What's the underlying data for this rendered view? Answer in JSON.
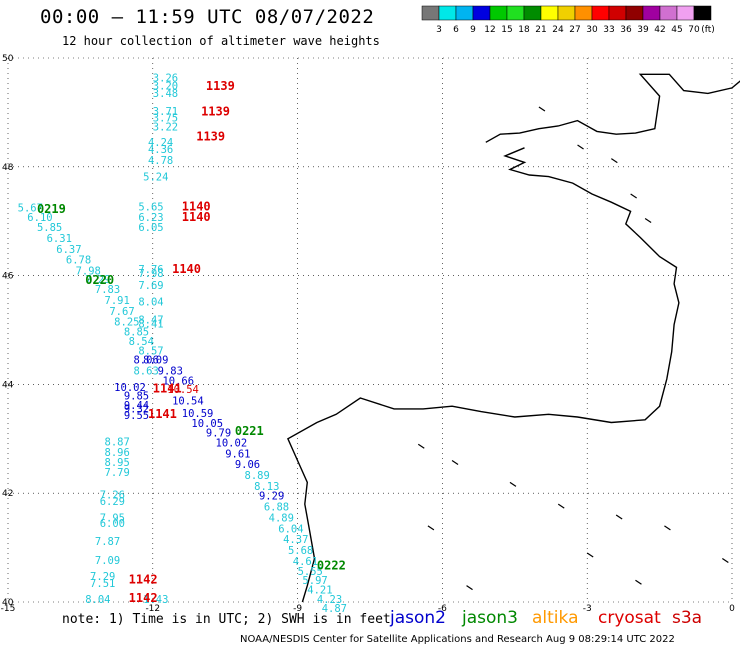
{
  "title": "00:00 – 11:59 UTC 08/07/2022",
  "subtitle": "12 hour collection of altimeter wave heights",
  "colorbar": {
    "labels": [
      "3",
      "6",
      "9",
      "12",
      "15",
      "18",
      "21",
      "24",
      "27",
      "30",
      "33",
      "36",
      "39",
      "42",
      "45",
      "70"
    ],
    "unit": "(ft)",
    "colors": [
      "#777777",
      "#00e8e8",
      "#00b4f0",
      "#0000e0",
      "#00c800",
      "#20e020",
      "#008c00",
      "#ffff00",
      "#f0d000",
      "#ff9000",
      "#ff0000",
      "#d00000",
      "#900000",
      "#a000a0",
      "#d070d0",
      "#f0a0f0",
      "#000000"
    ]
  },
  "axes": {
    "x_ticks": [
      "-15",
      "-12",
      "-9",
      "-6",
      "-3",
      "0"
    ],
    "y_ticks": [
      "50",
      "48",
      "46",
      "44",
      "42",
      "40"
    ]
  },
  "map": {
    "lon_range": [
      -15,
      0
    ],
    "lat_range": [
      40,
      50
    ],
    "colors": {
      "jason2": "#0000cc",
      "jason3": "#008800",
      "altika": "#ff9900",
      "cryosat": "#dd0000",
      "s3a": "#cc0000",
      "swh_light": "#00b0d0"
    },
    "annotations": [
      {
        "lon": -12.0,
        "lat": 49.57,
        "text": "3.26",
        "color": "#22c8d8"
      },
      {
        "lon": -12.0,
        "lat": 49.42,
        "text": "3.20",
        "color": "#22c8d8"
      },
      {
        "lon": -12.0,
        "lat": 49.28,
        "text": "3.48",
        "color": "#22c8d8"
      },
      {
        "lon": -12.0,
        "lat": 48.95,
        "text": "3.71",
        "color": "#22c8d8"
      },
      {
        "lon": -12.0,
        "lat": 48.83,
        "text": "3.75",
        "color": "#22c8d8"
      },
      {
        "lon": -12.0,
        "lat": 48.67,
        "text": "3.22",
        "color": "#22c8d8"
      },
      {
        "lon": -12.1,
        "lat": 48.38,
        "text": "4.24",
        "color": "#22c8d8"
      },
      {
        "lon": -12.1,
        "lat": 48.25,
        "text": "4.36",
        "color": "#22c8d8"
      },
      {
        "lon": -12.1,
        "lat": 48.05,
        "text": "4.78",
        "color": "#22c8d8"
      },
      {
        "lon": -12.2,
        "lat": 47.75,
        "text": "5.24",
        "color": "#22c8d8"
      },
      {
        "lon": -12.3,
        "lat": 47.2,
        "text": "5.65",
        "color": "#22c8d8"
      },
      {
        "lon": -12.3,
        "lat": 47.0,
        "text": "6.23",
        "color": "#22c8d8"
      },
      {
        "lon": -12.3,
        "lat": 46.82,
        "text": "6.05",
        "color": "#22c8d8"
      },
      {
        "lon": -12.3,
        "lat": 46.05,
        "text": "7.76",
        "color": "#22c8d8"
      },
      {
        "lon": -12.3,
        "lat": 45.97,
        "text": "7.98",
        "color": "#22c8d8"
      },
      {
        "lon": -12.3,
        "lat": 45.75,
        "text": "7.69",
        "color": "#22c8d8"
      },
      {
        "lon": -12.3,
        "lat": 45.45,
        "text": "8.04",
        "color": "#22c8d8"
      },
      {
        "lon": -12.3,
        "lat": 45.12,
        "text": "8.47",
        "color": "#22c8d8"
      },
      {
        "lon": -12.3,
        "lat": 45.05,
        "text": "8.41",
        "color": "#22c8d8"
      },
      {
        "lon": -14.8,
        "lat": 47.18,
        "text": "5.67",
        "color": "#22c8d8"
      },
      {
        "lon": -14.6,
        "lat": 47.0,
        "text": "6.10",
        "color": "#22c8d8"
      },
      {
        "lon": -14.4,
        "lat": 46.82,
        "text": "5.85",
        "color": "#22c8d8"
      },
      {
        "lon": -14.2,
        "lat": 46.62,
        "text": "6.31",
        "color": "#22c8d8"
      },
      {
        "lon": -14.0,
        "lat": 46.42,
        "text": "6.37",
        "color": "#22c8d8"
      },
      {
        "lon": -13.8,
        "lat": 46.22,
        "text": "6.78",
        "color": "#22c8d8"
      },
      {
        "lon": -13.6,
        "lat": 46.02,
        "text": "7.98",
        "color": "#22c8d8"
      },
      {
        "lon": -13.4,
        "lat": 45.86,
        "text": "7.29",
        "color": "#22c8d8"
      },
      {
        "lon": -13.2,
        "lat": 45.68,
        "text": "7.83",
        "color": "#22c8d8"
      },
      {
        "lon": -13.0,
        "lat": 45.48,
        "text": "7.91",
        "color": "#22c8d8"
      },
      {
        "lon": -12.9,
        "lat": 45.28,
        "text": "7.67",
        "color": "#22c8d8"
      },
      {
        "lon": -12.8,
        "lat": 45.08,
        "text": "8.25",
        "color": "#22c8d8"
      },
      {
        "lon": -12.6,
        "lat": 44.9,
        "text": "8.85",
        "color": "#22c8d8"
      },
      {
        "lon": -12.5,
        "lat": 44.72,
        "text": "8.54",
        "color": "#22c8d8"
      },
      {
        "lon": -12.3,
        "lat": 44.55,
        "text": "8.57",
        "color": "#22c8d8"
      },
      {
        "lon": -12.4,
        "lat": 44.38,
        "text": "8.06",
        "color": "#0000cc"
      },
      {
        "lon": -12.2,
        "lat": 44.38,
        "text": "8.09",
        "color": "#0000cc"
      },
      {
        "lon": -12.4,
        "lat": 44.18,
        "text": "8.63",
        "color": "#22c8d8"
      },
      {
        "lon": -11.9,
        "lat": 44.18,
        "text": "9.83",
        "color": "#0000cc"
      },
      {
        "lon": -11.8,
        "lat": 44.0,
        "text": "10.66",
        "color": "#0000cc"
      },
      {
        "lon": -12.8,
        "lat": 43.88,
        "text": "10.02",
        "color": "#0000cc"
      },
      {
        "lon": -11.7,
        "lat": 43.84,
        "text": "10.54",
        "color": "#dd0000"
      },
      {
        "lon": -12.6,
        "lat": 43.72,
        "text": "9.85",
        "color": "#0000cc"
      },
      {
        "lon": -12.6,
        "lat": 43.55,
        "text": "9.44",
        "color": "#0000cc"
      },
      {
        "lon": -12.6,
        "lat": 43.48,
        "text": "9.32",
        "color": "#0000cc"
      },
      {
        "lon": -11.6,
        "lat": 43.63,
        "text": "10.54",
        "color": "#0000cc"
      },
      {
        "lon": -12.6,
        "lat": 43.36,
        "text": "9.55",
        "color": "#0000cc"
      },
      {
        "lon": -11.4,
        "lat": 43.4,
        "text": "10.59",
        "color": "#0000cc"
      },
      {
        "lon": -11.2,
        "lat": 43.22,
        "text": "10.05",
        "color": "#0000cc"
      },
      {
        "lon": -10.9,
        "lat": 43.04,
        "text": "9.79",
        "color": "#0000cc"
      },
      {
        "lon": -10.7,
        "lat": 42.86,
        "text": "10.02",
        "color": "#0000cc"
      },
      {
        "lon": -10.5,
        "lat": 42.66,
        "text": "9.61",
        "color": "#0000cc"
      },
      {
        "lon": -10.3,
        "lat": 42.46,
        "text": "9.06",
        "color": "#0000cc"
      },
      {
        "lon": -10.1,
        "lat": 42.26,
        "text": "8.89",
        "color": "#22c8d8"
      },
      {
        "lon": -9.9,
        "lat": 42.06,
        "text": "8.13",
        "color": "#22c8d8"
      },
      {
        "lon": -9.8,
        "lat": 41.88,
        "text": "9.29",
        "color": "#0000cc"
      },
      {
        "lon": -9.7,
        "lat": 41.68,
        "text": "6.88",
        "color": "#22c8d8"
      },
      {
        "lon": -9.6,
        "lat": 41.48,
        "text": "4.89",
        "color": "#22c8d8"
      },
      {
        "lon": -9.4,
        "lat": 41.28,
        "text": "6.04",
        "color": "#22c8d8"
      },
      {
        "lon": -9.3,
        "lat": 41.08,
        "text": "4.37",
        "color": "#22c8d8"
      },
      {
        "lon": -9.2,
        "lat": 40.88,
        "text": "5.68",
        "color": "#22c8d8"
      },
      {
        "lon": -9.1,
        "lat": 40.68,
        "text": "4.61",
        "color": "#22c8d8"
      },
      {
        "lon": -9.0,
        "lat": 40.5,
        "text": "5.55",
        "color": "#22c8d8"
      },
      {
        "lon": -8.9,
        "lat": 40.33,
        "text": "5.97",
        "color": "#22c8d8"
      },
      {
        "lon": -8.8,
        "lat": 40.16,
        "text": "4.21",
        "color": "#22c8d8"
      },
      {
        "lon": -8.6,
        "lat": 39.98,
        "text": "4.23",
        "color": "#22c8d8"
      },
      {
        "lon": -8.5,
        "lat": 39.82,
        "text": "4.87",
        "color": "#22c8d8"
      },
      {
        "lon": -13.0,
        "lat": 42.88,
        "text": "8.87",
        "color": "#22c8d8"
      },
      {
        "lon": -13.0,
        "lat": 42.68,
        "text": "8.96",
        "color": "#22c8d8"
      },
      {
        "lon": -13.0,
        "lat": 42.5,
        "text": "8.95",
        "color": "#22c8d8"
      },
      {
        "lon": -13.0,
        "lat": 42.32,
        "text": "7.79",
        "color": "#22c8d8"
      },
      {
        "lon": -13.1,
        "lat": 41.9,
        "text": "7.26",
        "color": "#22c8d8"
      },
      {
        "lon": -13.1,
        "lat": 41.78,
        "text": "6.29",
        "color": "#22c8d8"
      },
      {
        "lon": -13.1,
        "lat": 41.48,
        "text": "7.95",
        "color": "#22c8d8"
      },
      {
        "lon": -13.1,
        "lat": 41.38,
        "text": "6.00",
        "color": "#22c8d8"
      },
      {
        "lon": -13.2,
        "lat": 41.05,
        "text": "7.87",
        "color": "#22c8d8"
      },
      {
        "lon": -13.2,
        "lat": 40.7,
        "text": "7.09",
        "color": "#22c8d8"
      },
      {
        "lon": -13.3,
        "lat": 40.4,
        "text": "7.29",
        "color": "#22c8d8"
      },
      {
        "lon": -13.3,
        "lat": 40.28,
        "text": "7.51",
        "color": "#22c8d8"
      },
      {
        "lon": -13.4,
        "lat": 39.98,
        "text": "8.04",
        "color": "#22c8d8"
      },
      {
        "lon": -12.2,
        "lat": 39.98,
        "text": "1.43",
        "color": "#22c8d8"
      },
      {
        "lon": -10.9,
        "lat": 49.41,
        "text": "1139",
        "color": "#dd0000",
        "big": true
      },
      {
        "lon": -11.0,
        "lat": 48.94,
        "text": "1139",
        "color": "#dd0000",
        "big": true
      },
      {
        "lon": -11.1,
        "lat": 48.48,
        "text": "1139",
        "color": "#dd0000",
        "big": true
      },
      {
        "lon": -11.4,
        "lat": 47.2,
        "text": "1140",
        "color": "#dd0000",
        "big": true
      },
      {
        "lon": -11.4,
        "lat": 47.0,
        "text": "1140",
        "color": "#dd0000",
        "big": true
      },
      {
        "lon": -11.6,
        "lat": 46.05,
        "text": "1140",
        "color": "#dd0000",
        "big": true
      },
      {
        "lon": -12.0,
        "lat": 43.85,
        "text": "1141",
        "color": "#dd0000",
        "big": true
      },
      {
        "lon": -12.1,
        "lat": 43.38,
        "text": "1141",
        "color": "#dd0000",
        "big": true
      },
      {
        "lon": -12.5,
        "lat": 40.34,
        "text": "1142",
        "color": "#dd0000",
        "big": true
      },
      {
        "lon": -12.5,
        "lat": 40.0,
        "text": "1142",
        "color": "#dd0000",
        "big": true
      },
      {
        "lon": -14.4,
        "lat": 47.15,
        "text": "0219",
        "color": "#008800",
        "big": true
      },
      {
        "lon": -13.4,
        "lat": 45.85,
        "text": "0220",
        "color": "#008800",
        "big": true
      },
      {
        "lon": -10.3,
        "lat": 43.07,
        "text": "0221",
        "color": "#008800",
        "big": true
      },
      {
        "lon": -8.6,
        "lat": 40.6,
        "text": "0222",
        "color": "#008800",
        "big": true
      }
    ]
  },
  "note": "note: 1) Time is in UTC; 2) SWH is in feet",
  "legend": [
    {
      "label": "jason2",
      "color": "#0000cc"
    },
    {
      "label": "jason3",
      "color": "#008800"
    },
    {
      "label": "altika",
      "color": "#ff9900"
    },
    {
      "label": "cryosat",
      "color": "#dd0000"
    },
    {
      "label": "s3a",
      "color": "#cc0000"
    }
  ],
  "credit": "NOAA/NESDIS Center for Satellite Applications and Research   Aug  9 08:29:14 UTC 2022"
}
